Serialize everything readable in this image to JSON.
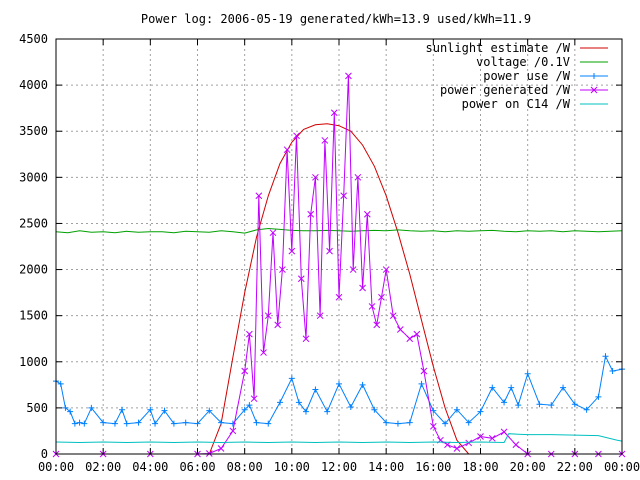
{
  "chart_data": {
    "type": "line",
    "title": "Power log: 2006-05-19 generated/kWh=13.9 used/kWh=11.9",
    "xlabel": "",
    "ylabel": "",
    "xlim": [
      0,
      24
    ],
    "ylim": [
      0,
      4500
    ],
    "grid": true,
    "legend_position": "top-right",
    "x_ticks": [
      0,
      2,
      4,
      6,
      8,
      10,
      12,
      14,
      16,
      18,
      20,
      22,
      24
    ],
    "x_tick_labels": [
      "00:00",
      "02:00",
      "04:00",
      "06:00",
      "08:00",
      "10:00",
      "12:00",
      "14:00",
      "16:00",
      "18:00",
      "20:00",
      "22:00",
      "00:00"
    ],
    "y_ticks": [
      0,
      500,
      1000,
      1500,
      2000,
      2500,
      3000,
      3500,
      4000,
      4500
    ],
    "y_tick_labels": [
      "0",
      "500",
      "1000",
      "1500",
      "2000",
      "2500",
      "3000",
      "3500",
      "4000",
      "4500"
    ],
    "series": [
      {
        "name": "sunlight estimate /W",
        "color": "#d00000",
        "marker": "none",
        "x": [
          6.5,
          7.0,
          7.5,
          8.0,
          8.5,
          9.0,
          9.5,
          10.0,
          10.5,
          11.0,
          11.5,
          12.0,
          12.5,
          13.0,
          13.5,
          14.0,
          14.5,
          15.0,
          15.5,
          16.0,
          16.5,
          17.0,
          17.5
        ],
        "y": [
          0,
          330,
          1050,
          1750,
          2350,
          2800,
          3150,
          3380,
          3520,
          3570,
          3580,
          3560,
          3500,
          3350,
          3120,
          2800,
          2400,
          1950,
          1450,
          950,
          500,
          150,
          0
        ]
      },
      {
        "name": "voltage /0.1V",
        "color": "#00a000",
        "marker": "none",
        "x": [
          0,
          0.5,
          1,
          1.5,
          2,
          2.5,
          3,
          3.5,
          4,
          4.5,
          5,
          5.5,
          6,
          6.5,
          7,
          7.5,
          8,
          8.5,
          9,
          9.5,
          10,
          10.5,
          11,
          11.5,
          12,
          12.5,
          13,
          13.5,
          14,
          14.5,
          15,
          15.5,
          16,
          16.5,
          17,
          17.5,
          18,
          18.5,
          19,
          19.5,
          20,
          20.5,
          21,
          21.5,
          22,
          22.5,
          23,
          23.5,
          24
        ],
        "y": [
          2410,
          2400,
          2420,
          2405,
          2410,
          2400,
          2415,
          2405,
          2410,
          2410,
          2400,
          2415,
          2410,
          2405,
          2420,
          2410,
          2395,
          2430,
          2445,
          2435,
          2425,
          2420,
          2420,
          2425,
          2420,
          2415,
          2420,
          2425,
          2420,
          2430,
          2420,
          2415,
          2420,
          2410,
          2420,
          2415,
          2420,
          2425,
          2415,
          2410,
          2420,
          2415,
          2420,
          2410,
          2420,
          2415,
          2410,
          2415,
          2420
        ]
      },
      {
        "name": "power use /W",
        "color": "#0080ff",
        "marker": "plus",
        "x": [
          0,
          0.2,
          0.4,
          0.6,
          0.8,
          1.0,
          1.2,
          1.5,
          2.0,
          2.5,
          2.8,
          3.0,
          3.5,
          4.0,
          4.2,
          4.6,
          5.0,
          5.5,
          6.0,
          6.5,
          7.0,
          7.5,
          8.0,
          8.2,
          8.5,
          9.0,
          9.5,
          10.0,
          10.3,
          10.6,
          11.0,
          11.5,
          12.0,
          12.5,
          13.0,
          13.5,
          14.0,
          14.5,
          15.0,
          15.5,
          16.0,
          16.5,
          17.0,
          17.5,
          18.0,
          18.5,
          19.0,
          19.3,
          19.6,
          20.0,
          20.5,
          21.0,
          21.5,
          22.0,
          22.5,
          23.0,
          23.3,
          23.6,
          24.0
        ],
        "y": [
          790,
          760,
          500,
          460,
          330,
          340,
          330,
          500,
          340,
          330,
          480,
          330,
          340,
          480,
          330,
          470,
          330,
          340,
          330,
          470,
          340,
          330,
          480,
          530,
          340,
          330,
          560,
          820,
          560,
          460,
          700,
          460,
          760,
          510,
          750,
          480,
          340,
          330,
          340,
          760,
          470,
          330,
          480,
          340,
          460,
          720,
          560,
          720,
          530,
          870,
          540,
          530,
          720,
          540,
          480,
          620,
          1060,
          900,
          920
        ]
      },
      {
        "name": "power generated /W",
        "color": "#c000ff",
        "marker": "cross",
        "x": [
          0,
          2,
          4,
          6,
          6.5,
          7.0,
          7.5,
          8.0,
          8.2,
          8.4,
          8.6,
          8.8,
          9.0,
          9.2,
          9.4,
          9.6,
          9.8,
          10.0,
          10.2,
          10.4,
          10.6,
          10.8,
          11.0,
          11.2,
          11.4,
          11.6,
          11.8,
          12.0,
          12.2,
          12.4,
          12.6,
          12.8,
          13.0,
          13.2,
          13.4,
          13.6,
          13.8,
          14.0,
          14.3,
          14.6,
          15.0,
          15.3,
          15.6,
          16.0,
          16.3,
          16.6,
          17.0,
          17.5,
          18.0,
          18.5,
          19.0,
          19.5,
          20.0,
          21,
          22,
          23,
          24
        ],
        "y": [
          0,
          0,
          0,
          0,
          5,
          60,
          250,
          900,
          1300,
          600,
          2800,
          1100,
          1500,
          2400,
          1400,
          2000,
          3300,
          2200,
          3450,
          1900,
          1250,
          2600,
          3000,
          1500,
          3400,
          2200,
          3700,
          1700,
          2800,
          4100,
          2000,
          3000,
          1800,
          2600,
          1600,
          1400,
          1700,
          2000,
          1500,
          1350,
          1250,
          1300,
          900,
          300,
          150,
          100,
          60,
          120,
          190,
          170,
          240,
          100,
          0,
          0,
          0,
          0,
          0
        ]
      },
      {
        "name": "power on C14 /W",
        "color": "#00c0c0",
        "marker": "none",
        "x": [
          0,
          1,
          2,
          3,
          4,
          5,
          6,
          7,
          8,
          9,
          10,
          11,
          12,
          13,
          14,
          15,
          16,
          17,
          18,
          19,
          19.2,
          19.6,
          20.0,
          21,
          22,
          23,
          23.8,
          24
        ],
        "y": [
          130,
          125,
          130,
          125,
          130,
          125,
          130,
          125,
          130,
          125,
          130,
          125,
          130,
          125,
          130,
          125,
          130,
          125,
          130,
          125,
          220,
          215,
          210,
          210,
          205,
          200,
          150,
          140
        ]
      }
    ]
  }
}
